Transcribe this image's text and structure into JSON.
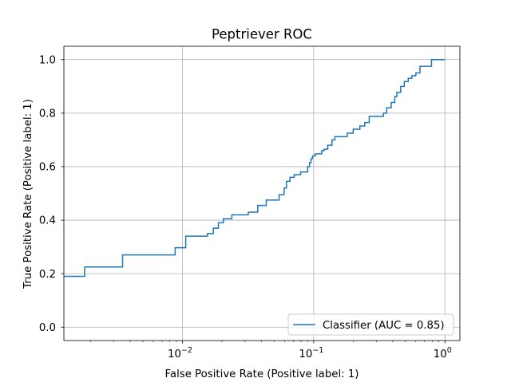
{
  "chart_data": {
    "type": "line",
    "title": "Peptriever ROC",
    "xlabel": "False Positive Rate (Positive label: 1)",
    "ylabel": "True Positive Rate (Positive label: 1)",
    "x_scale": "log",
    "xlim": [
      0.00125,
      1.3
    ],
    "ylim": [
      -0.05,
      1.05
    ],
    "x_ticks": [
      {
        "value": 0.01,
        "base": "10",
        "exp": "−2"
      },
      {
        "value": 0.1,
        "base": "10",
        "exp": "−1"
      },
      {
        "value": 1,
        "base": "10",
        "exp": "0"
      }
    ],
    "y_ticks": [
      {
        "value": 0.0,
        "label": "0.0"
      },
      {
        "value": 0.2,
        "label": "0.2"
      },
      {
        "value": 0.4,
        "label": "0.4"
      },
      {
        "value": 0.6,
        "label": "0.6"
      },
      {
        "value": 0.8,
        "label": "0.8"
      },
      {
        "value": 1.0,
        "label": "1.0"
      }
    ],
    "grid": true,
    "legend_position": "lower right",
    "series": [
      {
        "name": "Classifier (AUC = 0.85)",
        "color": "#1f77b4",
        "drawstyle": "steps-post",
        "points": [
          [
            0.00125,
            0.19
          ],
          [
            0.0018,
            0.19
          ],
          [
            0.0018,
            0.225
          ],
          [
            0.0035,
            0.225
          ],
          [
            0.0035,
            0.27
          ],
          [
            0.0088,
            0.27
          ],
          [
            0.0088,
            0.297
          ],
          [
            0.0106,
            0.297
          ],
          [
            0.0106,
            0.34
          ],
          [
            0.0155,
            0.34
          ],
          [
            0.0155,
            0.35
          ],
          [
            0.0172,
            0.35
          ],
          [
            0.0172,
            0.37
          ],
          [
            0.0188,
            0.37
          ],
          [
            0.0188,
            0.39
          ],
          [
            0.0205,
            0.39
          ],
          [
            0.0205,
            0.405
          ],
          [
            0.0238,
            0.405
          ],
          [
            0.0238,
            0.42
          ],
          [
            0.0318,
            0.42
          ],
          [
            0.0318,
            0.43
          ],
          [
            0.0375,
            0.43
          ],
          [
            0.0375,
            0.455
          ],
          [
            0.0435,
            0.455
          ],
          [
            0.0435,
            0.475
          ],
          [
            0.0545,
            0.475
          ],
          [
            0.0545,
            0.495
          ],
          [
            0.0595,
            0.495
          ],
          [
            0.0595,
            0.52
          ],
          [
            0.062,
            0.52
          ],
          [
            0.062,
            0.545
          ],
          [
            0.066,
            0.545
          ],
          [
            0.066,
            0.56
          ],
          [
            0.071,
            0.56
          ],
          [
            0.071,
            0.57
          ],
          [
            0.0795,
            0.57
          ],
          [
            0.0795,
            0.58
          ],
          [
            0.09,
            0.58
          ],
          [
            0.09,
            0.6
          ],
          [
            0.093,
            0.6
          ],
          [
            0.093,
            0.615
          ],
          [
            0.0955,
            0.615
          ],
          [
            0.0955,
            0.63
          ],
          [
            0.098,
            0.63
          ],
          [
            0.098,
            0.64
          ],
          [
            0.103,
            0.64
          ],
          [
            0.103,
            0.648
          ],
          [
            0.115,
            0.648
          ],
          [
            0.115,
            0.66
          ],
          [
            0.12,
            0.66
          ],
          [
            0.12,
            0.665
          ],
          [
            0.128,
            0.665
          ],
          [
            0.128,
            0.68
          ],
          [
            0.138,
            0.68
          ],
          [
            0.138,
            0.7
          ],
          [
            0.145,
            0.7
          ],
          [
            0.145,
            0.712
          ],
          [
            0.18,
            0.712
          ],
          [
            0.18,
            0.725
          ],
          [
            0.2,
            0.725
          ],
          [
            0.2,
            0.74
          ],
          [
            0.225,
            0.74
          ],
          [
            0.225,
            0.752
          ],
          [
            0.245,
            0.752
          ],
          [
            0.245,
            0.765
          ],
          [
            0.265,
            0.765
          ],
          [
            0.265,
            0.788
          ],
          [
            0.34,
            0.788
          ],
          [
            0.34,
            0.8
          ],
          [
            0.36,
            0.8
          ],
          [
            0.36,
            0.82
          ],
          [
            0.39,
            0.82
          ],
          [
            0.39,
            0.84
          ],
          [
            0.415,
            0.84
          ],
          [
            0.415,
            0.862
          ],
          [
            0.43,
            0.862
          ],
          [
            0.43,
            0.878
          ],
          [
            0.46,
            0.878
          ],
          [
            0.46,
            0.9
          ],
          [
            0.49,
            0.9
          ],
          [
            0.49,
            0.918
          ],
          [
            0.525,
            0.918
          ],
          [
            0.525,
            0.93
          ],
          [
            0.56,
            0.93
          ],
          [
            0.56,
            0.94
          ],
          [
            0.6,
            0.94
          ],
          [
            0.6,
            0.95
          ],
          [
            0.645,
            0.95
          ],
          [
            0.645,
            0.975
          ],
          [
            0.79,
            0.975
          ],
          [
            0.79,
            1.0
          ],
          [
            1.0,
            1.0
          ]
        ]
      }
    ]
  }
}
